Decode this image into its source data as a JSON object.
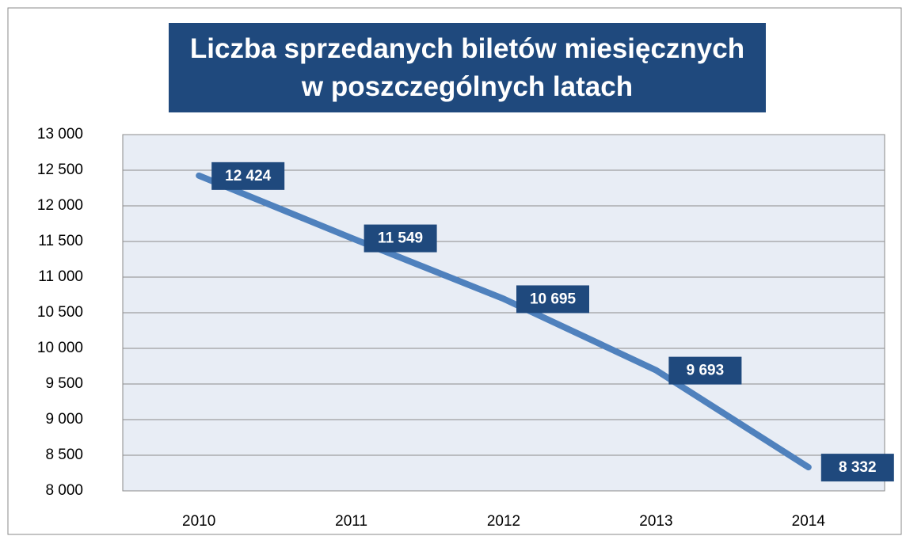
{
  "chart_data": {
    "type": "line",
    "title": "Liczba sprzedanych biletów miesięcznych w poszczególnych latach",
    "categories": [
      "2010",
      "2011",
      "2012",
      "2013",
      "2014"
    ],
    "series": [
      {
        "color": "#4f81bd",
        "values": [
          12424,
          11549,
          10695,
          9693,
          8332
        ],
        "value_labels": [
          "12 424",
          "11 549",
          "10 695",
          "9 693",
          "8 332"
        ]
      }
    ],
    "ylim": [
      8000,
      13000
    ],
    "yticks": [
      {
        "value": 8000,
        "label": "8 000"
      },
      {
        "value": 8500,
        "label": "8 500"
      },
      {
        "value": 9000,
        "label": "9 000"
      },
      {
        "value": 9500,
        "label": "9 500"
      },
      {
        "value": 10000,
        "label": "10 000"
      },
      {
        "value": 10500,
        "label": "10 500"
      },
      {
        "value": 11000,
        "label": "11 000"
      },
      {
        "value": 11500,
        "label": "11 500"
      },
      {
        "value": 12000,
        "label": "12 000"
      },
      {
        "value": 12500,
        "label": "12 500"
      },
      {
        "value": 13000,
        "label": "13 000"
      }
    ],
    "grid": true
  }
}
